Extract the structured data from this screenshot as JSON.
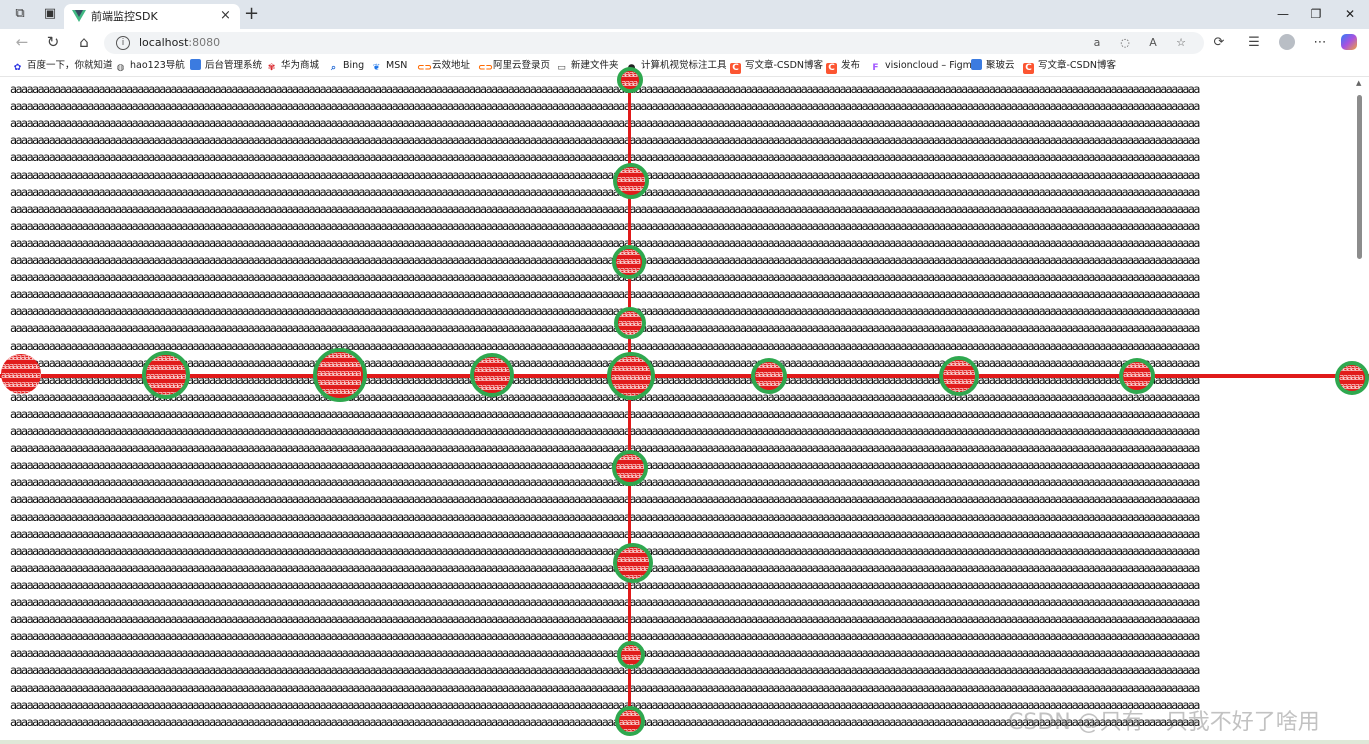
{
  "window": {
    "tab_title": "前端监控SDK",
    "tab_close": "×",
    "new_tab": "+",
    "minimize": "—",
    "restore": "❐",
    "close": "✕"
  },
  "address_bar": {
    "host": "localhost",
    "port": ":8080"
  },
  "bookmarks": [
    {
      "label": "百度一下，你就知道",
      "icon": "baidu-icon",
      "color": "#2932e1"
    },
    {
      "label": "hao123导航",
      "icon": "globe-icon",
      "color": "#555555"
    },
    {
      "label": "后台管理系统",
      "icon": "bookmark-icon",
      "color": "#3b7be0"
    },
    {
      "label": "华为商城",
      "icon": "huawei-icon",
      "color": "#d9262c"
    },
    {
      "label": "Bing",
      "icon": "search-icon",
      "color": "#2b6fd6"
    },
    {
      "label": "MSN",
      "icon": "msn-icon",
      "color": "#1a73e8"
    },
    {
      "label": "云效地址",
      "icon": "aliyun-icon",
      "color": "#ff6a00"
    },
    {
      "label": "阿里云登录页",
      "icon": "aliyun-icon",
      "color": "#ff6a00"
    },
    {
      "label": "新建文件夹",
      "icon": "folder-icon",
      "color": "#444444"
    },
    {
      "label": "计算机视觉标注工具",
      "icon": "annotation-tool-icon",
      "color": "#222222"
    },
    {
      "label": "写文章-CSDN博客",
      "icon": "csdn-icon",
      "color": "#fc5531"
    },
    {
      "label": "发布",
      "icon": "csdn-icon",
      "color": "#fc5531"
    },
    {
      "label": "visioncloud – Figma",
      "icon": "figma-icon",
      "color": "#a259ff"
    },
    {
      "label": "聚玻云",
      "icon": "bookmark-icon",
      "color": "#3b7be0"
    },
    {
      "label": "写文章-CSDN博客",
      "icon": "csdn-icon",
      "color": "#fc5531"
    }
  ],
  "content": {
    "line_text": "aaaaaaaaaaaaaaaaaaaaaaaaaaaaaaaaaaaaaaaaaaaaaaaaaaaaaaaaaaaaaaaaaaaaaaaaaaaaaaaaaaaaaaaaaaaaaaaaaaaaaaaaaaaaaaaaaaaaaaaaaaaaaaaaaaaaaaaaaaaaaaaaaaaaaaaaaaaaaaaaaaaaaaaaaaaaaaaaaaaaaaaaaaaaaaaaaaaaaaaaaaaaaaaaaaaaaaa",
    "marker_text": "aaaaaaaaaaaaaaaaaaaaaaaaaaaaaaaaaaaaaaaaaaaaaaaaaaaaaaaaaaaaaaaaaaaaaaaa",
    "line_count": 38
  },
  "colors": {
    "marker_fill": "#e11c1c",
    "marker_ring": "#2fa84f",
    "axis_line": "#e01a1a"
  },
  "watermark": "CSDN @只有一只我不好了啥用"
}
